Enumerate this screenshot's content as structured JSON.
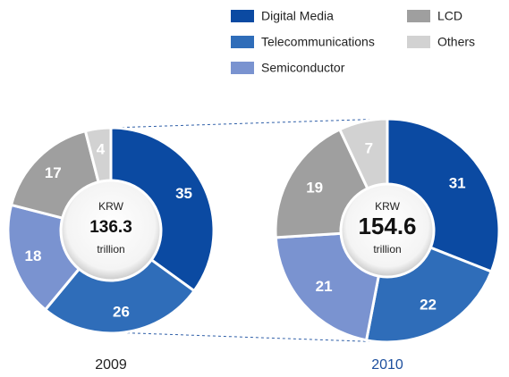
{
  "legend": {
    "names": [
      "Digital Media",
      "Telecommunications",
      "Semiconductor",
      "LCD",
      "Others"
    ],
    "colors": [
      "#0b4aa2",
      "#2f6db9",
      "#7a93d0",
      "#9f9f9f",
      "#d2d2d2"
    ]
  },
  "chart_data": [
    {
      "type": "pie",
      "title": "2009",
      "title_color": "#222222",
      "center_label": [
        "KRW",
        "136.3",
        "trillion"
      ],
      "values": [
        35,
        26,
        18,
        17,
        4
      ]
    },
    {
      "type": "pie",
      "title": "2010",
      "title_color": "#1c4f9e",
      "center_label": [
        "KRW",
        "154.6",
        "trillion"
      ],
      "values": [
        31,
        22,
        21,
        19,
        7
      ]
    }
  ]
}
